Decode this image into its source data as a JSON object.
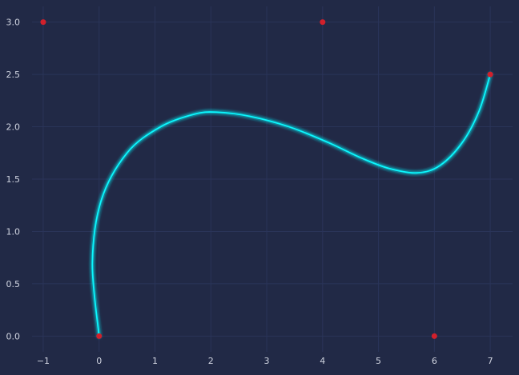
{
  "chart_data": {
    "type": "line",
    "title": "",
    "xlabel": "",
    "ylabel": "",
    "xlim": [
      -1.2,
      7.4
    ],
    "ylim": [
      -0.15,
      3.15
    ],
    "x_ticks": [
      -1,
      0,
      1,
      2,
      3,
      4,
      5,
      6,
      7
    ],
    "y_ticks": [
      0.0,
      0.5,
      1.0,
      1.5,
      2.0,
      2.5,
      3.0
    ],
    "x_tick_labels": [
      "−1",
      "0",
      "1",
      "2",
      "3",
      "4",
      "5",
      "6",
      "7"
    ],
    "y_tick_labels": [
      "0.0",
      "0.5",
      "1.0",
      "1.5",
      "2.0",
      "2.5",
      "3.0"
    ],
    "grid": true,
    "legend": "none",
    "series": [
      {
        "kind": "curve",
        "style": "glowing line",
        "x": [
          0.0,
          -0.12,
          0.04,
          0.5,
          1.1,
          1.7,
          2.1,
          2.7,
          3.4,
          4.1,
          4.7,
          5.2,
          5.7,
          6.1,
          6.5,
          6.8,
          7.0
        ],
        "y": [
          0.0,
          0.7,
          1.3,
          1.75,
          2.0,
          2.12,
          2.14,
          2.1,
          2.0,
          1.85,
          1.7,
          1.6,
          1.56,
          1.63,
          1.85,
          2.15,
          2.5
        ]
      },
      {
        "kind": "control-points",
        "style": "markers",
        "x": [
          0,
          -1,
          4,
          6,
          7
        ],
        "y": [
          0,
          3,
          3,
          0,
          2.5
        ]
      }
    ]
  },
  "colors": {
    "background": "#212946",
    "grid": "#2A3459",
    "tick_text": "#D0D4E0",
    "curve": "#08F7FE",
    "points": "#D1202B"
  }
}
